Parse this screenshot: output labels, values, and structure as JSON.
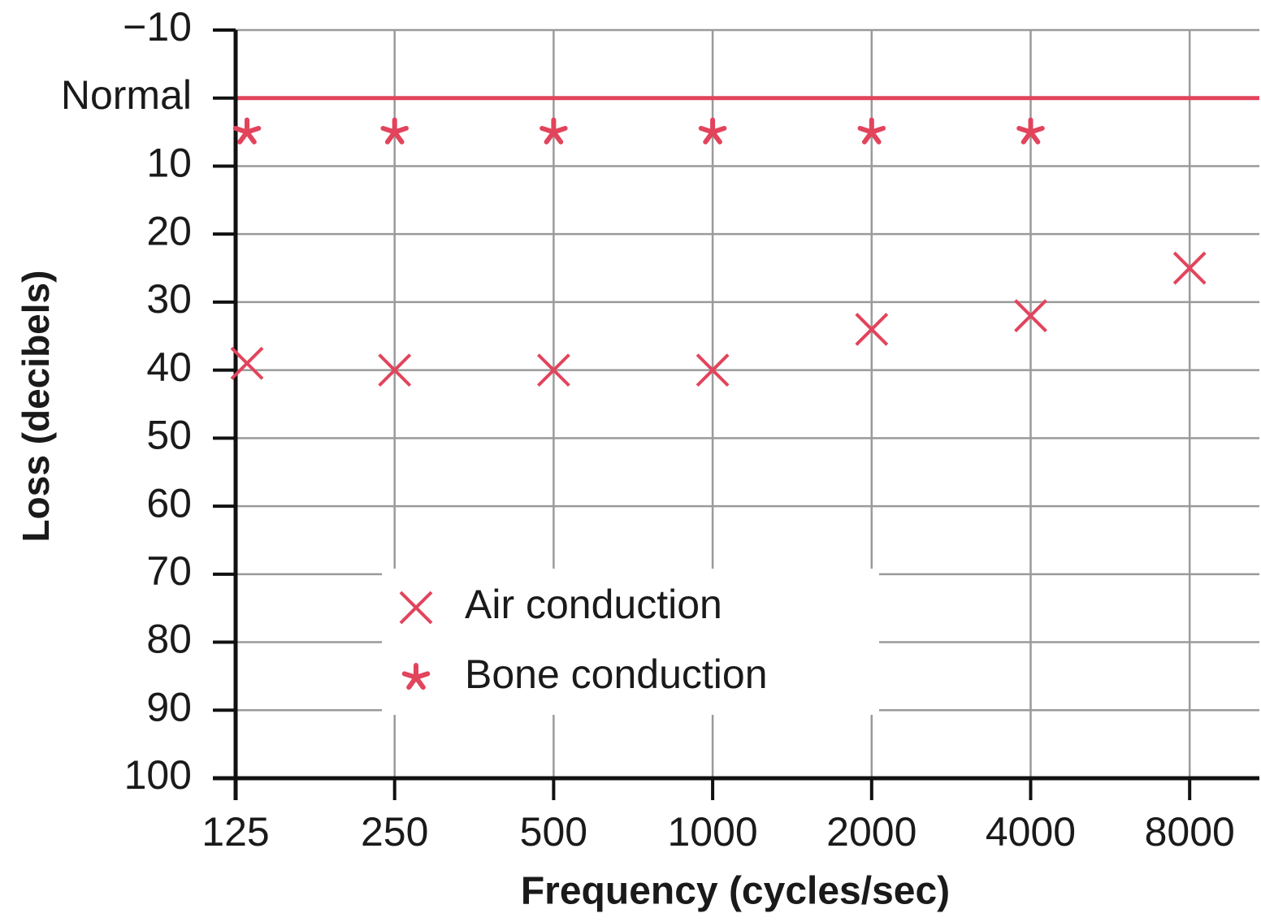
{
  "chart_data": {
    "type": "scatter",
    "y_label": "Loss (decibels)",
    "x_label": "Frequency (cycles/sec)",
    "categories": [
      "125",
      "250",
      "500",
      "1000",
      "2000",
      "4000",
      "8000"
    ],
    "series": [
      {
        "name": "Air conduction",
        "color": "#e2445c",
        "marker": "x",
        "values": [
          39,
          40,
          40,
          40,
          34,
          32,
          25
        ]
      },
      {
        "name": "Bone conduction",
        "color": "#e2445c",
        "marker": "star",
        "values": [
          5,
          5,
          5,
          5,
          5,
          5,
          null
        ]
      }
    ],
    "ylim": [
      -10,
      100
    ],
    "y_inverted": true,
    "yticks": [
      {
        "value": -10,
        "label": "−10"
      },
      {
        "value": 0,
        "label": "Normal"
      },
      10,
      20,
      30,
      40,
      50,
      60,
      70,
      80,
      90,
      100
    ],
    "normal_line": {
      "value": 0,
      "color": "#e2445c"
    },
    "grid": true,
    "legend": "lower center"
  }
}
